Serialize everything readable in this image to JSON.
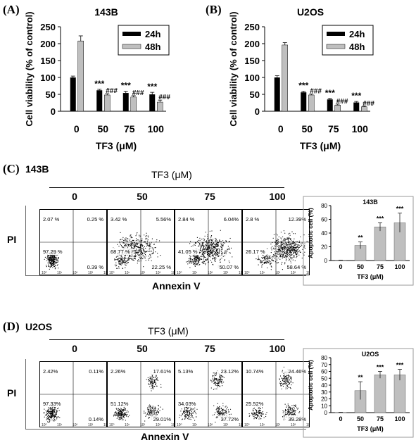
{
  "panels": {
    "A": {
      "letter": "(A)",
      "cell_line": "143B"
    },
    "B": {
      "letter": "(B)",
      "cell_line": "U2OS"
    },
    "C": {
      "letter": "(C)",
      "cell_line": "143B"
    },
    "D": {
      "letter": "(D)",
      "cell_line": "U2OS"
    }
  },
  "flow": {
    "treatment_label": "TF3 (μM)",
    "x_label": "Annexin V",
    "y_label": "PI",
    "doses": [
      "0",
      "50",
      "75",
      "100"
    ],
    "C_quadrants": [
      {
        "ul": "2.07 %",
        "ur": "0.25 %",
        "ll": "97.29 %",
        "lr": "0.39 %"
      },
      {
        "ul": "3.42 %",
        "ur": "5.56%",
        "ll": "68.77 %",
        "lr": "22.25 %"
      },
      {
        "ul": "2.84 %",
        "ur": "6.04%",
        "ll": "41.05 %",
        "lr": "50.07 %"
      },
      {
        "ul": "2.8 %",
        "ur": "12.39%",
        "ll": "26.17 %",
        "lr": "58.64 %"
      }
    ],
    "D_quadrants": [
      {
        "ul": "2.42%",
        "ur": "0.11%",
        "ll": "97.33%",
        "lr": "0.14%"
      },
      {
        "ul": "2.26%",
        "ur": "17.61%",
        "ll": "51.12%",
        "lr": "29.01%"
      },
      {
        "ul": "5.13%",
        "ur": "23.12%",
        "ll": "34.03%",
        "lr": "37.72%"
      },
      {
        "ul": "10.74%",
        "ur": "24.46%",
        "ll": "25.52%",
        "lr": "39.28%"
      }
    ],
    "axis_ticks": [
      "10⁰",
      "10¹",
      "10²",
      "10³",
      "10⁴"
    ]
  },
  "chart_data": [
    {
      "type": "bar",
      "title": "143B",
      "xlabel": "TF3 (μM)",
      "ylabel": "Cell viability (% of control)",
      "categories": [
        "0",
        "50",
        "75",
        "100"
      ],
      "ylim": [
        0,
        250
      ],
      "yticks": [
        0,
        50,
        100,
        150,
        200,
        250
      ],
      "series": [
        {
          "name": "24h",
          "color": "#000000",
          "values": [
            100,
            62,
            54,
            50
          ],
          "errors": [
            4,
            3,
            5,
            6
          ],
          "annotations": [
            "",
            "***",
            "***",
            "***"
          ]
        },
        {
          "name": "48h",
          "color": "#bfbfbf",
          "values": [
            208,
            48,
            42,
            27
          ],
          "errors": [
            15,
            4,
            4,
            6
          ],
          "annotations": [
            "",
            "###",
            "###",
            "###"
          ]
        }
      ],
      "legend": "top-right"
    },
    {
      "type": "bar",
      "title": "U2OS",
      "xlabel": "TF3 (μM)",
      "ylabel": "Cell viability (% of control)",
      "categories": [
        "0",
        "50",
        "75",
        "100"
      ],
      "ylim": [
        0,
        250
      ],
      "yticks": [
        0,
        50,
        100,
        150,
        200,
        250
      ],
      "series": [
        {
          "name": "24h",
          "color": "#000000",
          "values": [
            100,
            56,
            35,
            26
          ],
          "errors": [
            5,
            3,
            3,
            3
          ],
          "annotations": [
            "",
            "***",
            "***",
            "***"
          ]
        },
        {
          "name": "48h",
          "color": "#bfbfbf",
          "values": [
            196,
            48,
            18,
            13
          ],
          "errors": [
            7,
            3,
            3,
            2
          ],
          "annotations": [
            "",
            "###",
            "###",
            "###"
          ]
        }
      ],
      "legend": "top-right"
    },
    {
      "type": "bar",
      "title": "143B",
      "xlabel": "TF3 (μM)",
      "ylabel": "Apoptotic cell (%)",
      "categories": [
        "0",
        "50",
        "75",
        "100"
      ],
      "ylim": [
        0,
        80
      ],
      "yticks": [
        0,
        20,
        40,
        60,
        80
      ],
      "series": [
        {
          "color": "#bfbfbf",
          "values": [
            0.5,
            22,
            49,
            55
          ],
          "errors": [
            0.2,
            5,
            6,
            14
          ],
          "annotations": [
            "",
            "**",
            "***",
            "***"
          ]
        }
      ]
    },
    {
      "type": "bar",
      "title": "U2OS",
      "xlabel": "TF3 (μM)",
      "ylabel": "Apoptotic cell (%)",
      "categories": [
        "0",
        "50",
        "75",
        "100"
      ],
      "ylim": [
        0,
        80
      ],
      "yticks": [
        0,
        10,
        20,
        30,
        40,
        50,
        60,
        70,
        80
      ],
      "series": [
        {
          "color": "#bfbfbf",
          "values": [
            0.3,
            32,
            55,
            55
          ],
          "errors": [
            0.2,
            13,
            5,
            8
          ],
          "annotations": [
            "",
            "**",
            "***",
            "***"
          ]
        }
      ]
    }
  ]
}
